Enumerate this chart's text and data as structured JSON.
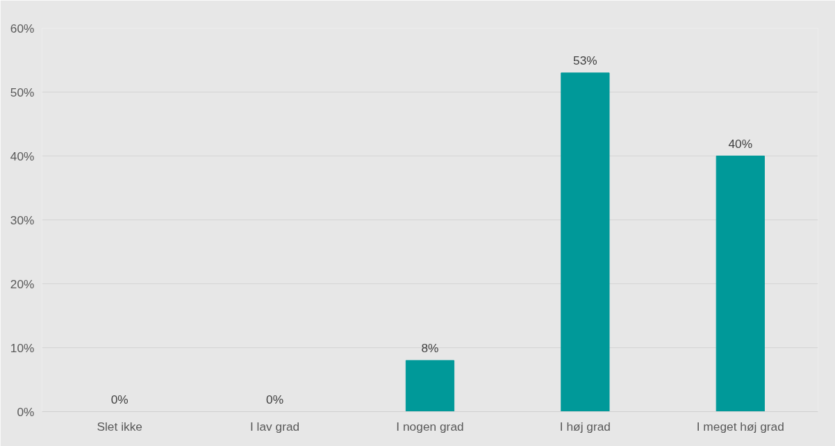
{
  "chart_data": {
    "type": "bar",
    "categories": [
      "Slet ikke",
      "I lav grad",
      "I nogen grad",
      "I høj grad",
      "I meget høj grad"
    ],
    "values": [
      0,
      0,
      8,
      53,
      40
    ],
    "color": "#009999",
    "ylim": [
      0,
      60
    ],
    "yticks": [
      {
        "value": 0,
        "label": "0%"
      },
      {
        "value": 10,
        "label": "10%"
      },
      {
        "value": 20,
        "label": "20%"
      },
      {
        "value": 30,
        "label": "30%"
      },
      {
        "value": 40,
        "label": "40%"
      },
      {
        "value": 50,
        "label": "50%"
      },
      {
        "value": 60,
        "label": "60%"
      }
    ],
    "value_labels": [
      "0%",
      "0%",
      "8%",
      "53%",
      "40%"
    ],
    "grid": "y"
  }
}
